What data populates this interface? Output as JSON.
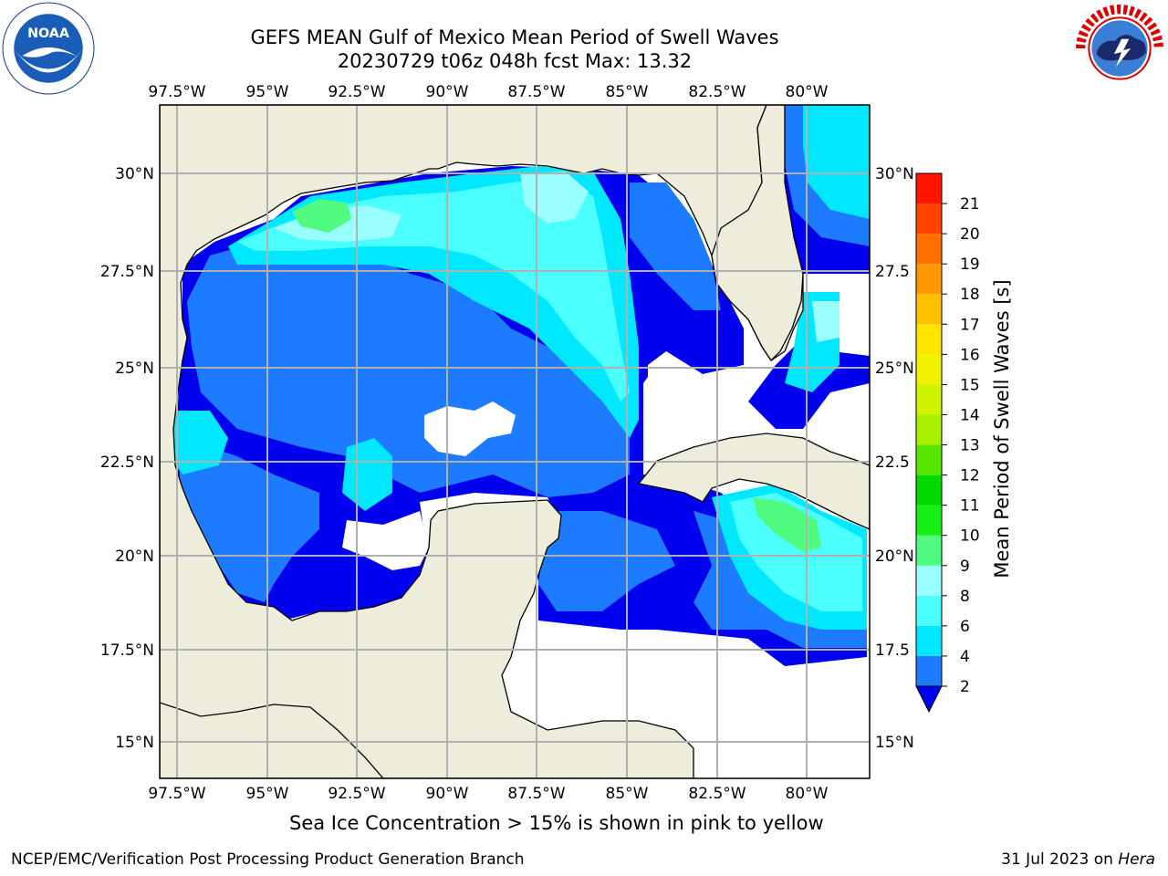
{
  "header": {
    "title_line1": "GEFS MEAN Gulf of Mexico Mean Period of Swell Waves",
    "title_line2": "20230729 t06z 048h fcst   Max: 13.32"
  },
  "logos": {
    "left": "noaa-logo",
    "right": "nws-logo",
    "left_text": "NOAA",
    "right_text": "NATIONAL WEATHER SERVICE"
  },
  "map": {
    "lon_labels": [
      "97.5°W",
      "95°W",
      "92.5°W",
      "90°W",
      "87.5°W",
      "85°W",
      "82.5°W",
      "80°W"
    ],
    "lat_labels_left": [
      "30°N",
      "27.5°N",
      "25°N",
      "22.5°N",
      "20°N",
      "17.5°N",
      "15°N"
    ],
    "lat_labels_right": [
      "30°N",
      "27.5",
      "25°N",
      "22.5",
      "20°N",
      "17.5",
      "15°N"
    ],
    "colors": {
      "land": "#eeeddc",
      "ocean_missing": "#ffffff",
      "grid": "#b0b0b0"
    }
  },
  "colorbar": {
    "label": "Mean Period of Swell Waves [s]",
    "ticks": [
      "2",
      "4",
      "6",
      "8",
      "9",
      "10",
      "11",
      "12",
      "13",
      "14",
      "15",
      "16",
      "17",
      "18",
      "19",
      "20",
      "21"
    ],
    "colors": [
      "#1c7bff",
      "#00e8ff",
      "#4cffff",
      "#99ffff",
      "#4ffc7f",
      "#14ef14",
      "#00d800",
      "#58e800",
      "#a8f000",
      "#d0f400",
      "#f0f000",
      "#ffe600",
      "#ffc000",
      "#ff9800",
      "#ff7000",
      "#ff4200",
      "#ff1400"
    ],
    "extend_color": "#0000ee"
  },
  "footer": {
    "ice_note": "Sea Ice Concentration > 15% is shown in pink to yellow",
    "left": "NCEP/EMC/Verification Post Processing Product Generation Branch",
    "right_date": "31 Jul 2023 on ",
    "right_machine": "Hera"
  }
}
